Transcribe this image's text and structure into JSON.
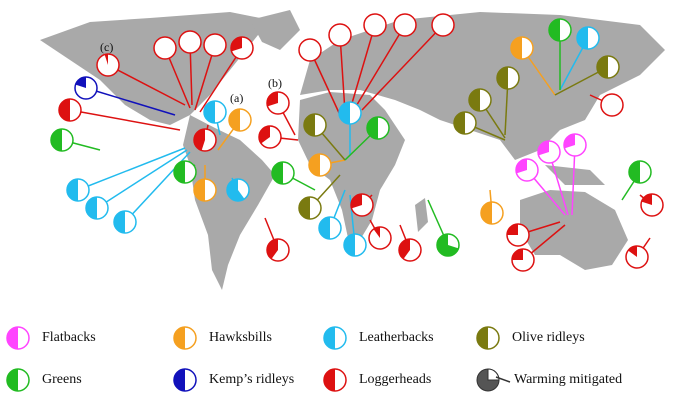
{
  "annotations": [
    "(a)",
    "(b)",
    "(c)"
  ],
  "legend": {
    "items": [
      {
        "name": "Flatbacks",
        "color": "#ff44ff",
        "pies": [
          0.3,
          0.3,
          0.3
        ]
      },
      {
        "name": "Hawksbills",
        "color": "#f5a020",
        "pies": [
          0.5,
          0.5,
          0.5,
          0.5,
          0.5
        ]
      },
      {
        "name": "Leatherbacks",
        "color": "#22bbee",
        "pies": [
          0.5,
          0.5,
          0.5,
          0.5,
          0.6,
          0.5,
          0.5,
          0.5,
          0.5
        ]
      },
      {
        "name": "Olive ridleys",
        "color": "#7a7a10",
        "pies": [
          0.5,
          0.5,
          0.5,
          0.5,
          0.5,
          0.5
        ]
      },
      {
        "name": "Greens",
        "color": "#22bb22",
        "pies": [
          0.5,
          0.5,
          0.5,
          0.5,
          0.7,
          0.5,
          0.5
        ]
      },
      {
        "name": "Kemp’s ridleys",
        "color": "#1111bb",
        "pies": [
          0.2
        ]
      },
      {
        "name": "Loggerheads",
        "color": "#dd1111",
        "pies": [
          0.05,
          0,
          0,
          0,
          0.3,
          0.5,
          0.45,
          0.3,
          0.35,
          0,
          0,
          0,
          0,
          0,
          0,
          0.4,
          0.3,
          0.1,
          0.4,
          0.25,
          0.25,
          0.2,
          0.15
        ]
      },
      {
        "name": "Warming mitigated",
        "color": "#555555",
        "pies": []
      }
    ]
  }
}
